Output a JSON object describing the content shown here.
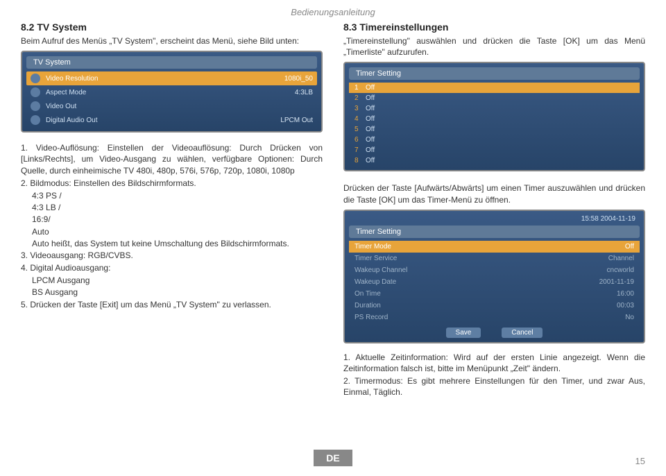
{
  "header": "Bedienungsanleitung",
  "left": {
    "heading": "8.2 TV System",
    "intro": "Beim Aufruf des Menüs „TV System\", erscheint das Menü, siehe Bild unten:",
    "menu": {
      "title": "TV System",
      "rows": [
        {
          "label": "Video Resolution",
          "value": "1080i_50",
          "hl": true
        },
        {
          "label": "Aspect Mode",
          "value": "4:3LB",
          "hl": false
        },
        {
          "label": "Video Out",
          "value": "",
          "hl": false
        },
        {
          "label": "Digital Audio Out",
          "value": "LPCM Out",
          "hl": false
        }
      ]
    },
    "list": {
      "item1_lead": "1. Video-Auflösung: Einstellen der Videoauflösung: Durch Drücken von [Links/Rechts], um Video-Ausgang zu wählen, verfügbare Optionen: Durch Quelle, durch einheimische TV 480i, 480p, 576i, 576p, 720p, 1080i, 1080p",
      "item2_lead": "2. Bildmodus: Einstellen des Bildschirmformats.",
      "item2_sub_a": "4:3 PS /",
      "item2_sub_b": "4:3 LB /",
      "item2_sub_c": "16:9/",
      "item2_sub_d": "Auto",
      "item2_sub_e": "Auto heißt, das System tut keine Umschaltung des Bildschirmformats.",
      "item3": "3. Videoausgang: RGB/CVBS.",
      "item4_lead": "4. Digital Audioausgang:",
      "item4_sub_a": "LPCM Ausgang",
      "item4_sub_b": "BS Ausgang",
      "item5": "5. Drücken der Taste [Exit] um das Menü „TV System\" zu verlassen."
    }
  },
  "right": {
    "heading": "8.3 Timereinstellungen",
    "intro": "„Timereinstellung\" auswählen und drücken die Taste [OK] um das Menü „Timerliste\" aufzurufen.",
    "timerlist": {
      "title": "Timer Setting",
      "rows": [
        {
          "n": "1",
          "v": "Off",
          "hl": true
        },
        {
          "n": "2",
          "v": "Off",
          "hl": false
        },
        {
          "n": "3",
          "v": "Off",
          "hl": false
        },
        {
          "n": "4",
          "v": "Off",
          "hl": false
        },
        {
          "n": "5",
          "v": "Off",
          "hl": false
        },
        {
          "n": "6",
          "v": "Off",
          "hl": false
        },
        {
          "n": "7",
          "v": "Off",
          "hl": false
        },
        {
          "n": "8",
          "v": "Off",
          "hl": false
        }
      ]
    },
    "midtext": "Drücken der Taste [Aufwärts/Abwärts] um einen Timer auszuwählen und drücken die Taste [OK] um das Timer-Menü zu öffnen.",
    "timermenu": {
      "clock": "15:58 2004-11-19",
      "title": "Timer Setting",
      "rows": [
        {
          "label": "Timer Mode",
          "value": "Off",
          "hl": true
        },
        {
          "label": "Timer Service",
          "value": "Channel",
          "hl": false
        },
        {
          "label": "Wakeup Channel",
          "value": "cncworld",
          "hl": false
        },
        {
          "label": "Wakeup Date",
          "value": "2001-11-19",
          "hl": false
        },
        {
          "label": "On Time",
          "value": "16:00",
          "hl": false
        },
        {
          "label": "Duration",
          "value": "00:03",
          "hl": false
        },
        {
          "label": "PS Record",
          "value": "No",
          "hl": false
        }
      ],
      "save": "Save",
      "cancel": "Cancel"
    },
    "bottomlist": {
      "item1": "1. Aktuelle Zeitinformation: Wird auf der ersten Linie angezeigt. Wenn die Zeitinformation falsch ist, bitte im Menüpunkt „Zeit\" ändern.",
      "item2": "2. Timermodus: Es gibt mehrere Einstellungen für den Timer, und zwar Aus, Einmal, Täglich."
    }
  },
  "footer": {
    "lang": "DE",
    "page": "15"
  }
}
